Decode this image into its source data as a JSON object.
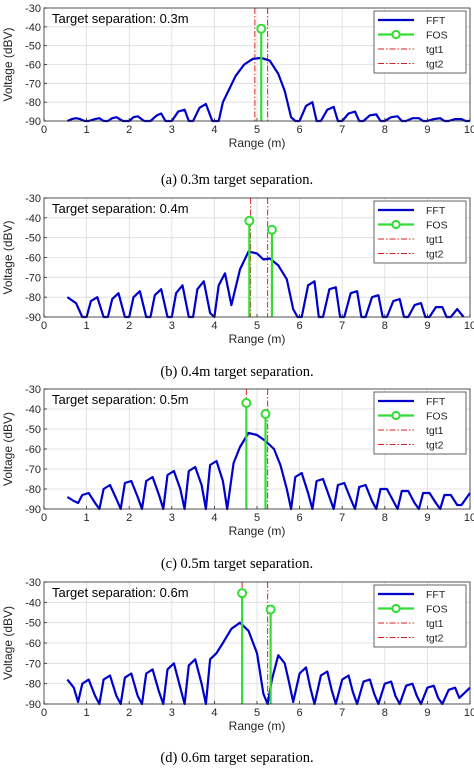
{
  "colors": {
    "fft": "#0000cc",
    "fos": "#33dd33",
    "tgt": "#dd2222",
    "grid": "#dcdcdc",
    "axis": "#262626"
  },
  "chart_data": [
    {
      "type": "line",
      "annotation": "Target separation: 0.3m",
      "caption": "(a) 0.3m target separation.",
      "xlabel": "Range (m)",
      "ylabel": "Voltage (dBV)",
      "xlim": [
        0,
        10
      ],
      "ylim": [
        -90,
        -30
      ],
      "xticks": [
        0,
        1,
        2,
        3,
        4,
        5,
        6,
        7,
        8,
        9,
        10
      ],
      "yticks": [
        -30,
        -40,
        -50,
        -60,
        -70,
        -80,
        -90
      ],
      "grid": true,
      "legend": {
        "placement": "top-right",
        "entries": [
          "FFT",
          "FOS",
          "tgt1",
          "tgt2"
        ]
      },
      "fft": {
        "x": [
          0.55,
          0.65,
          0.75,
          0.85,
          0.95,
          1.05,
          1.2,
          1.3,
          1.4,
          1.5,
          1.6,
          1.7,
          1.85,
          2.0,
          2.1,
          2.2,
          2.35,
          2.5,
          2.65,
          2.75,
          2.85,
          3.0,
          3.15,
          3.3,
          3.4,
          3.5,
          3.65,
          3.8,
          3.95,
          4.1,
          4.2,
          4.35,
          4.5,
          4.7,
          4.9,
          5.1,
          5.3,
          5.5,
          5.65,
          5.8,
          5.9,
          6.0,
          6.15,
          6.3,
          6.4,
          6.5,
          6.65,
          6.8,
          6.9,
          7.0,
          7.15,
          7.3,
          7.4,
          7.5,
          7.65,
          7.8,
          7.9,
          8.0,
          8.15,
          8.3,
          8.4,
          8.5,
          8.65,
          8.8,
          8.9,
          9.0,
          9.15,
          9.3,
          9.4,
          9.5,
          9.65,
          9.8,
          9.9,
          10.0
        ],
        "y": [
          -90,
          -89,
          -88.5,
          -89,
          -90,
          -90,
          -89,
          -88.5,
          -90,
          -90,
          -88.5,
          -88,
          -90,
          -90,
          -88,
          -87.5,
          -90,
          -90,
          -87,
          -86,
          -90,
          -90,
          -85,
          -84,
          -90,
          -90,
          -83,
          -81,
          -90,
          -90,
          -80,
          -73,
          -66,
          -60,
          -57,
          -56.5,
          -58,
          -65,
          -74,
          -88,
          -90,
          -90,
          -82,
          -80,
          -90,
          -90,
          -84,
          -82.5,
          -90,
          -90,
          -86,
          -85,
          -90,
          -90,
          -87,
          -86.5,
          -90,
          -90,
          -88,
          -87.5,
          -90,
          -90,
          -88.5,
          -88.5,
          -90,
          -90,
          -89,
          -88.5,
          -90,
          -90,
          -89,
          -89,
          -90,
          -90
        ]
      },
      "fos": [
        {
          "x": 5.1,
          "y": -41
        }
      ],
      "targets": [
        {
          "name": "tgt1",
          "x": 4.95
        },
        {
          "name": "tgt2",
          "x": 5.25
        }
      ]
    },
    {
      "type": "line",
      "annotation": "Target separation: 0.4m",
      "caption": "(b) 0.4m target separation.",
      "xlabel": "Range (m)",
      "ylabel": "Voltage (dBV)",
      "xlim": [
        0,
        10
      ],
      "ylim": [
        -90,
        -30
      ],
      "xticks": [
        0,
        1,
        2,
        3,
        4,
        5,
        6,
        7,
        8,
        9,
        10
      ],
      "yticks": [
        -30,
        -40,
        -50,
        -60,
        -70,
        -80,
        -90
      ],
      "grid": true,
      "legend": {
        "placement": "top-right",
        "entries": [
          "FFT",
          "FOS",
          "tgt1",
          "tgt2"
        ]
      },
      "fft": {
        "x": [
          0.55,
          0.75,
          0.9,
          1.0,
          1.1,
          1.25,
          1.4,
          1.5,
          1.6,
          1.75,
          1.9,
          2.0,
          2.1,
          2.25,
          2.4,
          2.5,
          2.6,
          2.75,
          2.9,
          3.0,
          3.1,
          3.25,
          3.4,
          3.5,
          3.6,
          3.75,
          3.9,
          4.0,
          4.1,
          4.25,
          4.4,
          4.6,
          4.8,
          5.0,
          5.15,
          5.3,
          5.5,
          5.7,
          5.85,
          5.95,
          6.05,
          6.2,
          6.35,
          6.45,
          6.55,
          6.7,
          6.85,
          6.95,
          7.05,
          7.2,
          7.35,
          7.45,
          7.55,
          7.7,
          7.85,
          7.95,
          8.05,
          8.2,
          8.35,
          8.45,
          8.55,
          8.7,
          8.85,
          8.95,
          9.05,
          9.2,
          9.35,
          9.45,
          9.55,
          9.7,
          9.85
        ],
        "y": [
          -80,
          -83,
          -90,
          -90,
          -82,
          -80,
          -90,
          -90,
          -81,
          -78,
          -90,
          -90,
          -80,
          -77,
          -90,
          -90,
          -79,
          -76,
          -90,
          -90,
          -78,
          -74,
          -90,
          -90,
          -76,
          -72,
          -88,
          -90,
          -74,
          -68,
          -84,
          -66,
          -57,
          -58,
          -61,
          -60.5,
          -64,
          -71,
          -86,
          -90,
          -90,
          -74,
          -72,
          -90,
          -90,
          -76,
          -75,
          -90,
          -90,
          -78,
          -77,
          -90,
          -90,
          -80,
          -79,
          -90,
          -90,
          -82,
          -81,
          -90,
          -90,
          -84,
          -83,
          -90,
          -90,
          -85,
          -85,
          -90,
          -90,
          -86,
          -90
        ]
      },
      "fos": [
        {
          "x": 4.82,
          "y": -41.5
        },
        {
          "x": 5.35,
          "y": -46
        }
      ],
      "targets": [
        {
          "name": "tgt1",
          "x": 4.85
        },
        {
          "name": "tgt2",
          "x": 5.25
        }
      ]
    },
    {
      "type": "line",
      "annotation": "Target separation: 0.5m",
      "caption": "(c) 0.5m target separation.",
      "xlabel": "Range (m)",
      "ylabel": "Voltage (dBV)",
      "xlim": [
        0,
        10
      ],
      "ylim": [
        -90,
        -30
      ],
      "xticks": [
        0,
        1,
        2,
        3,
        4,
        5,
        6,
        7,
        8,
        9,
        10
      ],
      "yticks": [
        -30,
        -40,
        -50,
        -60,
        -70,
        -80,
        -90
      ],
      "grid": true,
      "legend": {
        "placement": "top-right",
        "entries": [
          "FFT",
          "FOS",
          "tgt1",
          "tgt2"
        ]
      },
      "fft": {
        "x": [
          0.55,
          0.7,
          0.8,
          0.9,
          1.05,
          1.2,
          1.3,
          1.4,
          1.55,
          1.7,
          1.8,
          1.9,
          2.05,
          2.2,
          2.3,
          2.4,
          2.55,
          2.7,
          2.8,
          2.9,
          3.05,
          3.2,
          3.3,
          3.4,
          3.55,
          3.7,
          3.8,
          3.9,
          4.05,
          4.2,
          4.3,
          4.45,
          4.6,
          4.8,
          5.0,
          5.2,
          5.4,
          5.55,
          5.7,
          5.8,
          5.9,
          6.05,
          6.2,
          6.3,
          6.4,
          6.55,
          6.7,
          6.8,
          6.9,
          7.05,
          7.2,
          7.3,
          7.4,
          7.55,
          7.7,
          7.8,
          7.9,
          8.05,
          8.2,
          8.3,
          8.4,
          8.55,
          8.7,
          8.8,
          8.9,
          9.05,
          9.2,
          9.3,
          9.4,
          9.55,
          9.7,
          9.8,
          9.9,
          10.0
        ],
        "y": [
          -84,
          -86,
          -87,
          -83,
          -82,
          -87,
          -90,
          -80,
          -78,
          -85,
          -90,
          -77,
          -76,
          -84,
          -90,
          -76,
          -74,
          -83,
          -90,
          -73,
          -71,
          -80,
          -90,
          -71,
          -69,
          -78,
          -90,
          -68,
          -66,
          -76,
          -90,
          -67,
          -59,
          -52,
          -53,
          -56,
          -60,
          -68,
          -80,
          -90,
          -74,
          -72,
          -82,
          -90,
          -76,
          -75,
          -84,
          -90,
          -78,
          -77,
          -85,
          -90,
          -79,
          -78,
          -86,
          -90,
          -80,
          -80,
          -86,
          -90,
          -81,
          -81,
          -87,
          -90,
          -82,
          -82,
          -87,
          -90,
          -83,
          -83,
          -88,
          -88,
          -85,
          -82
        ]
      },
      "fos": [
        {
          "x": 4.75,
          "y": -37
        },
        {
          "x": 5.2,
          "y": -42.5
        }
      ],
      "targets": [
        {
          "name": "tgt1",
          "x": 4.75
        },
        {
          "name": "tgt2",
          "x": 5.25
        }
      ]
    },
    {
      "type": "line",
      "annotation": "Target separation: 0.6m",
      "caption": "(d) 0.6m target separation.",
      "xlabel": "Range (m)",
      "ylabel": "Voltage (dBV)",
      "xlim": [
        0,
        10
      ],
      "ylim": [
        -90,
        -30
      ],
      "xticks": [
        0,
        1,
        2,
        3,
        4,
        5,
        6,
        7,
        8,
        9,
        10
      ],
      "yticks": [
        -30,
        -40,
        -50,
        -60,
        -70,
        -80,
        -90
      ],
      "grid": true,
      "legend": {
        "placement": "top-right",
        "entries": [
          "FFT",
          "FOS",
          "tgt1",
          "tgt2"
        ]
      },
      "fft": {
        "x": [
          0.55,
          0.7,
          0.8,
          0.9,
          1.05,
          1.2,
          1.3,
          1.4,
          1.55,
          1.7,
          1.8,
          1.9,
          2.05,
          2.2,
          2.3,
          2.4,
          2.55,
          2.7,
          2.8,
          2.9,
          3.05,
          3.2,
          3.3,
          3.4,
          3.55,
          3.7,
          3.8,
          3.9,
          4.05,
          4.2,
          4.4,
          4.6,
          4.8,
          5.0,
          5.15,
          5.25,
          5.35,
          5.5,
          5.65,
          5.75,
          5.85,
          6.0,
          6.15,
          6.25,
          6.35,
          6.5,
          6.65,
          6.75,
          6.85,
          7.0,
          7.15,
          7.25,
          7.35,
          7.5,
          7.65,
          7.75,
          7.85,
          8.0,
          8.15,
          8.25,
          8.35,
          8.5,
          8.65,
          8.75,
          8.85,
          9.0,
          9.15,
          9.25,
          9.35,
          9.5,
          9.65,
          9.75,
          9.85,
          10.0
        ],
        "y": [
          -78,
          -82,
          -89,
          -80,
          -78,
          -86,
          -90,
          -78,
          -76,
          -86,
          -90,
          -77,
          -75,
          -86,
          -90,
          -75,
          -73,
          -84,
          -90,
          -73,
          -70,
          -82,
          -90,
          -71,
          -68,
          -80,
          -90,
          -68,
          -65,
          -60,
          -53,
          -50,
          -54,
          -65,
          -85,
          -90,
          -78,
          -66,
          -70,
          -79,
          -89,
          -75,
          -72,
          -82,
          -90,
          -76,
          -74,
          -83,
          -90,
          -78,
          -76,
          -84,
          -90,
          -79,
          -78,
          -85,
          -90,
          -80,
          -79,
          -86,
          -90,
          -81,
          -80,
          -86,
          -90,
          -82,
          -81,
          -87,
          -90,
          -83,
          -82,
          -87,
          -85,
          -82
        ]
      },
      "fos": [
        {
          "x": 4.65,
          "y": -35.5
        },
        {
          "x": 5.32,
          "y": -43.5
        }
      ],
      "targets": [
        {
          "name": "tgt1",
          "x": 4.65
        },
        {
          "name": "tgt2",
          "x": 5.25
        }
      ]
    }
  ]
}
